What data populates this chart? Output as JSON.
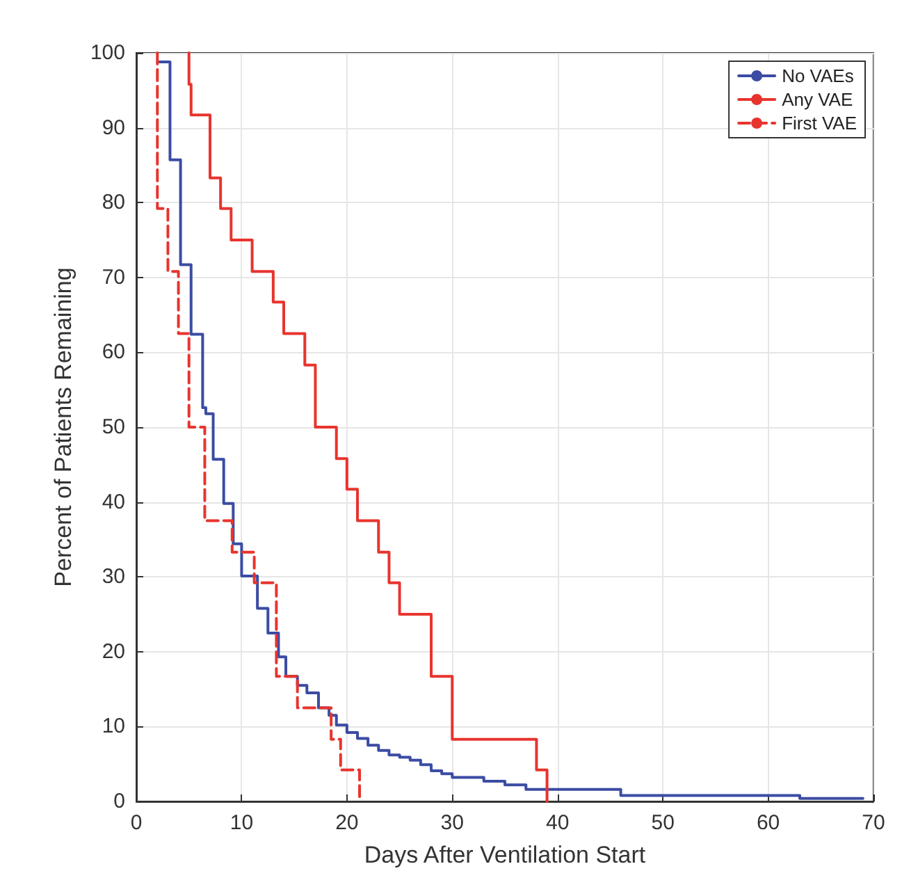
{
  "chart_data": {
    "type": "step",
    "xlabel": "Days After Ventilation Start",
    "ylabel": "Percent of Patients Remaining",
    "xlim": [
      0,
      70
    ],
    "xticks": [
      0,
      10,
      20,
      30,
      40,
      50,
      60,
      70
    ],
    "ylim": [
      0,
      100
    ],
    "yticks": [
      0,
      10,
      20,
      30,
      40,
      50,
      60,
      70,
      80,
      90,
      100
    ],
    "grid": true,
    "legend": "top right",
    "marker": "none",
    "series": [
      {
        "name": "No VAEs",
        "color": "#3b4ca3",
        "line_style": "solid",
        "x": [
          2.2,
          3.2,
          4.2,
          5.2,
          6.3,
          6.6,
          7.3,
          8.3,
          9.2,
          10,
          11.5,
          12.5,
          13.5,
          14.2,
          15.3,
          16.2,
          17.3,
          18.3,
          19,
          20,
          21,
          22,
          23,
          24,
          25,
          26,
          27,
          28,
          29,
          30,
          33,
          35,
          37,
          46,
          63,
          69
        ],
        "values": [
          98.8,
          85.7,
          71.7,
          62.4,
          52.6,
          51.8,
          45.7,
          39.8,
          34.4,
          30.1,
          25.8,
          22.5,
          19.3,
          16.7,
          15.5,
          14.5,
          12.5,
          11.5,
          10.2,
          9.2,
          8.4,
          7.5,
          6.8,
          6.2,
          5.9,
          5.5,
          4.9,
          4.1,
          3.7,
          3.2,
          2.7,
          2.2,
          1.6,
          0.8,
          0.4,
          0.4
        ]
      },
      {
        "name": "Any VAE",
        "color": "#e8342e",
        "line_style": "solid",
        "x": [
          5,
          5,
          5.2,
          7,
          8,
          9,
          11,
          13,
          14,
          16,
          17,
          19,
          20,
          21,
          23,
          24,
          25,
          28,
          30,
          38,
          39
        ],
        "values": [
          100,
          95.8,
          91.7,
          83.3,
          79.2,
          75,
          70.8,
          66.7,
          62.5,
          58.3,
          50,
          45.8,
          41.7,
          37.5,
          33.3,
          29.2,
          25,
          16.7,
          8.3,
          4.2,
          0
        ]
      },
      {
        "name": "First VAE",
        "color": "#e8342e",
        "line_style": "dashed",
        "x": [
          2,
          2,
          3,
          4,
          5,
          6.5,
          9.1,
          11.2,
          13.3,
          15.3,
          18.5,
          19.4,
          21.2
        ],
        "values": [
          100,
          79.2,
          70.8,
          62.5,
          50,
          37.5,
          33.3,
          29.2,
          16.7,
          12.5,
          8.3,
          4.2,
          0
        ]
      }
    ]
  }
}
